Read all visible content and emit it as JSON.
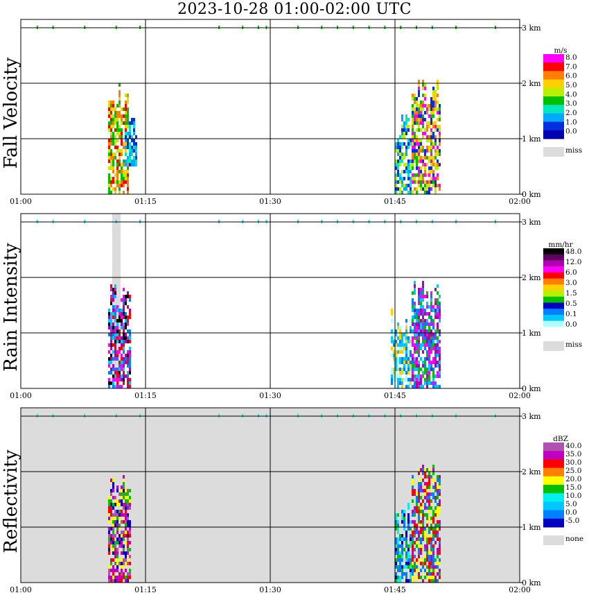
{
  "title": "2023-10-28  01:00-02:00 UTC",
  "chart_data": {
    "type": "heatmap",
    "time_range": [
      "01:00",
      "02:00"
    ],
    "x_ticks": [
      "01:00",
      "01:15",
      "01:30",
      "01:45",
      "02:00"
    ],
    "x_tick_minutes": [
      0,
      15,
      30,
      45,
      60
    ],
    "y_ticks": [
      "0 km",
      "1 km",
      "2 km",
      "3 km"
    ],
    "y_tick_km": [
      0,
      1,
      2,
      3
    ],
    "ylim_km": [
      0,
      3.1
    ],
    "grid": true,
    "legend_placement": "right",
    "missing_color": "#dcdcdc",
    "panels": [
      {
        "name": "Fall Velocity",
        "unit": "m/s",
        "background": "#ffffff",
        "legend_labels": [
          "8.0",
          "7.0",
          "6.0",
          "5.0",
          "4.0",
          "3.0",
          "2.0",
          "1.0",
          "0.0"
        ],
        "legend_colors": [
          "#ff00ff",
          "#ff0000",
          "#ff8000",
          "#ffd000",
          "#b8f000",
          "#00c000",
          "#00e8c0",
          "#00a8ff",
          "#0030e0",
          "#0000b0"
        ],
        "missing_label": "miss",
        "echoes": [
          {
            "t0": 10.5,
            "t1": 13.0,
            "h0": 0.0,
            "h1": 2.0,
            "colors": [
              "#ffd000",
              "#b8f000",
              "#ff8000",
              "#00c000",
              "#ff0000"
            ]
          },
          {
            "t0": 12.5,
            "t1": 14.0,
            "h0": 0.5,
            "h1": 1.5,
            "colors": [
              "#00e8c0",
              "#00a8ff",
              "#0030e0"
            ]
          },
          {
            "t0": 45.0,
            "t1": 47.0,
            "h0": 0.0,
            "h1": 1.4,
            "colors": [
              "#00a8ff",
              "#00e8c0",
              "#b8f000",
              "#0030e0"
            ]
          },
          {
            "t0": 47.0,
            "t1": 50.5,
            "h0": 0.0,
            "h1": 2.1,
            "colors": [
              "#ff00ff",
              "#b8f000",
              "#ffd000",
              "#00c000",
              "#0030e0",
              "#ff8000"
            ]
          }
        ]
      },
      {
        "name": "Rain Intensity",
        "unit": "mm/hr",
        "background": "#ffffff",
        "legend_labels": [
          "48.0",
          "12.0",
          "6.0",
          "3.0",
          "1.5",
          "0.5",
          "0.1",
          "0.0"
        ],
        "legend_colors": [
          "#000000",
          "#600060",
          "#b000b0",
          "#ff00ff",
          "#ff0000",
          "#ff8000",
          "#ffd000",
          "#b8f000",
          "#00c000",
          "#0000c0",
          "#0080ff",
          "#00c8ff",
          "#b0ffff",
          "#ffffff"
        ],
        "missing_label": "miss",
        "missing_block": {
          "t0": 11.0,
          "t1": 12.0
        },
        "echoes": [
          {
            "t0": 10.5,
            "t1": 13.2,
            "h0": 0.0,
            "h1": 1.9,
            "colors": [
              "#b000b0",
              "#ff00ff",
              "#000000",
              "#ff0000",
              "#0080ff",
              "#00c8ff"
            ]
          },
          {
            "t0": 44.5,
            "t1": 47.0,
            "h0": 0.0,
            "h1": 1.4,
            "colors": [
              "#00c8ff",
              "#0080ff",
              "#ffd000",
              "#b0ffff"
            ]
          },
          {
            "t0": 47.0,
            "t1": 50.5,
            "h0": 0.0,
            "h1": 1.9,
            "colors": [
              "#b000b0",
              "#ff00ff",
              "#0080ff",
              "#00c000",
              "#00c8ff"
            ]
          }
        ]
      },
      {
        "name": "Reflectivity",
        "unit": "dBZ",
        "background": "#dcdcdc",
        "legend_labels": [
          "40.0",
          "35.0",
          "30.0",
          "25.0",
          "20.0",
          "15.0",
          "10.0",
          "5.0",
          "0.0",
          "-5.0"
        ],
        "legend_colors": [
          "#b050b0",
          "#c000c0",
          "#ff0000",
          "#ff8000",
          "#ffff00",
          "#00c000",
          "#00f0f0",
          "#00c8ff",
          "#0080ff",
          "#0000c0"
        ],
        "missing_label": "none",
        "echoes": [
          {
            "t0": 10.5,
            "t1": 13.2,
            "h0": 0.0,
            "h1": 2.0,
            "colors": [
              "#b050b0",
              "#c000c0",
              "#ff0000",
              "#ffff00",
              "#00c000",
              "#0000c0"
            ]
          },
          {
            "t0": 45.0,
            "t1": 47.0,
            "h0": 0.0,
            "h1": 1.4,
            "colors": [
              "#0080ff",
              "#00c000",
              "#00f0f0",
              "#0000c0"
            ]
          },
          {
            "t0": 47.0,
            "t1": 50.5,
            "h0": 0.0,
            "h1": 2.1,
            "colors": [
              "#ff0000",
              "#c000c0",
              "#00c000",
              "#ffff00",
              "#0080ff"
            ]
          }
        ]
      }
    ]
  }
}
